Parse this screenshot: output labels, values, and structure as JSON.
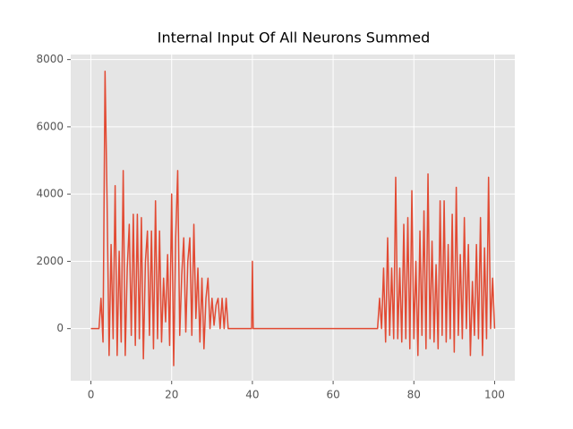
{
  "chart_data": {
    "type": "line",
    "title": "Internal Input Of All Neurons Summed",
    "xlim": [
      -5,
      105
    ],
    "ylim": [
      -1550,
      8150
    ],
    "xticks": [
      0,
      20,
      40,
      60,
      80,
      100
    ],
    "yticks": [
      0,
      2000,
      4000,
      6000,
      8000
    ],
    "grid": true,
    "background": "#e5e5e5",
    "series": [
      {
        "color": "#e24a33",
        "x": [
          0,
          1,
          2,
          2.5,
          3,
          3.5,
          4,
          4.5,
          5,
          5.5,
          6,
          6.5,
          7,
          7.5,
          8,
          8.5,
          9,
          9.5,
          10,
          10.5,
          11,
          11.5,
          12,
          12.5,
          13,
          13.5,
          14,
          14.5,
          15,
          15.5,
          16,
          16.5,
          17,
          17.5,
          18,
          18.5,
          19,
          19.5,
          20,
          20.5,
          21,
          21.5,
          22,
          22.5,
          23,
          23.5,
          24,
          24.5,
          25,
          25.5,
          26,
          26.5,
          27,
          27.5,
          28,
          28.5,
          29,
          29.5,
          30,
          30.5,
          31,
          31.5,
          32,
          32.5,
          33,
          33.5,
          34,
          34.5,
          35,
          39.8,
          40,
          40.2,
          71,
          71.5,
          72,
          72.5,
          73,
          73.5,
          74,
          74.5,
          75,
          75.5,
          76,
          76.5,
          77,
          77.5,
          78,
          78.5,
          79,
          79.5,
          80,
          80.5,
          81,
          81.5,
          82,
          82.5,
          83,
          83.5,
          84,
          84.5,
          85,
          85.5,
          86,
          86.5,
          87,
          87.5,
          88,
          88.5,
          89,
          89.5,
          90,
          90.5,
          91,
          91.5,
          92,
          92.5,
          93,
          93.5,
          94,
          94.5,
          95,
          95.5,
          96,
          96.5,
          97,
          97.5,
          98,
          98.5,
          99,
          99.5,
          100
        ],
        "values": [
          0,
          0,
          0,
          900,
          -400,
          7650,
          3800,
          -800,
          2500,
          -300,
          4250,
          -800,
          2300,
          -400,
          4700,
          -800,
          1800,
          3100,
          -200,
          3400,
          -500,
          3400,
          -300,
          3300,
          -900,
          2000,
          2900,
          -200,
          2900,
          -600,
          3800,
          -300,
          2900,
          -400,
          1500,
          200,
          2200,
          -500,
          4000,
          -1100,
          2700,
          4700,
          -200,
          1600,
          2700,
          -100,
          2000,
          2700,
          -200,
          3100,
          300,
          1800,
          -400,
          1500,
          -600,
          900,
          1500,
          0,
          900,
          100,
          700,
          900,
          0,
          900,
          0,
          900,
          0,
          0,
          0,
          0,
          2000,
          0,
          0,
          900,
          0,
          1800,
          -400,
          2700,
          -200,
          1800,
          -300,
          4500,
          -300,
          1800,
          -400,
          3100,
          -300,
          3300,
          -600,
          4100,
          -300,
          2000,
          -800,
          2900,
          -200,
          3500,
          -600,
          4600,
          -300,
          2600,
          -400,
          1900,
          -600,
          3800,
          -200,
          3800,
          -400,
          2500,
          -300,
          3400,
          -700,
          4200,
          -200,
          2200,
          -300,
          3300,
          0,
          2500,
          -800,
          1400,
          -200,
          2500,
          -300,
          3300,
          -800,
          2400,
          -300,
          4500,
          0,
          1500,
          0
        ]
      }
    ]
  }
}
